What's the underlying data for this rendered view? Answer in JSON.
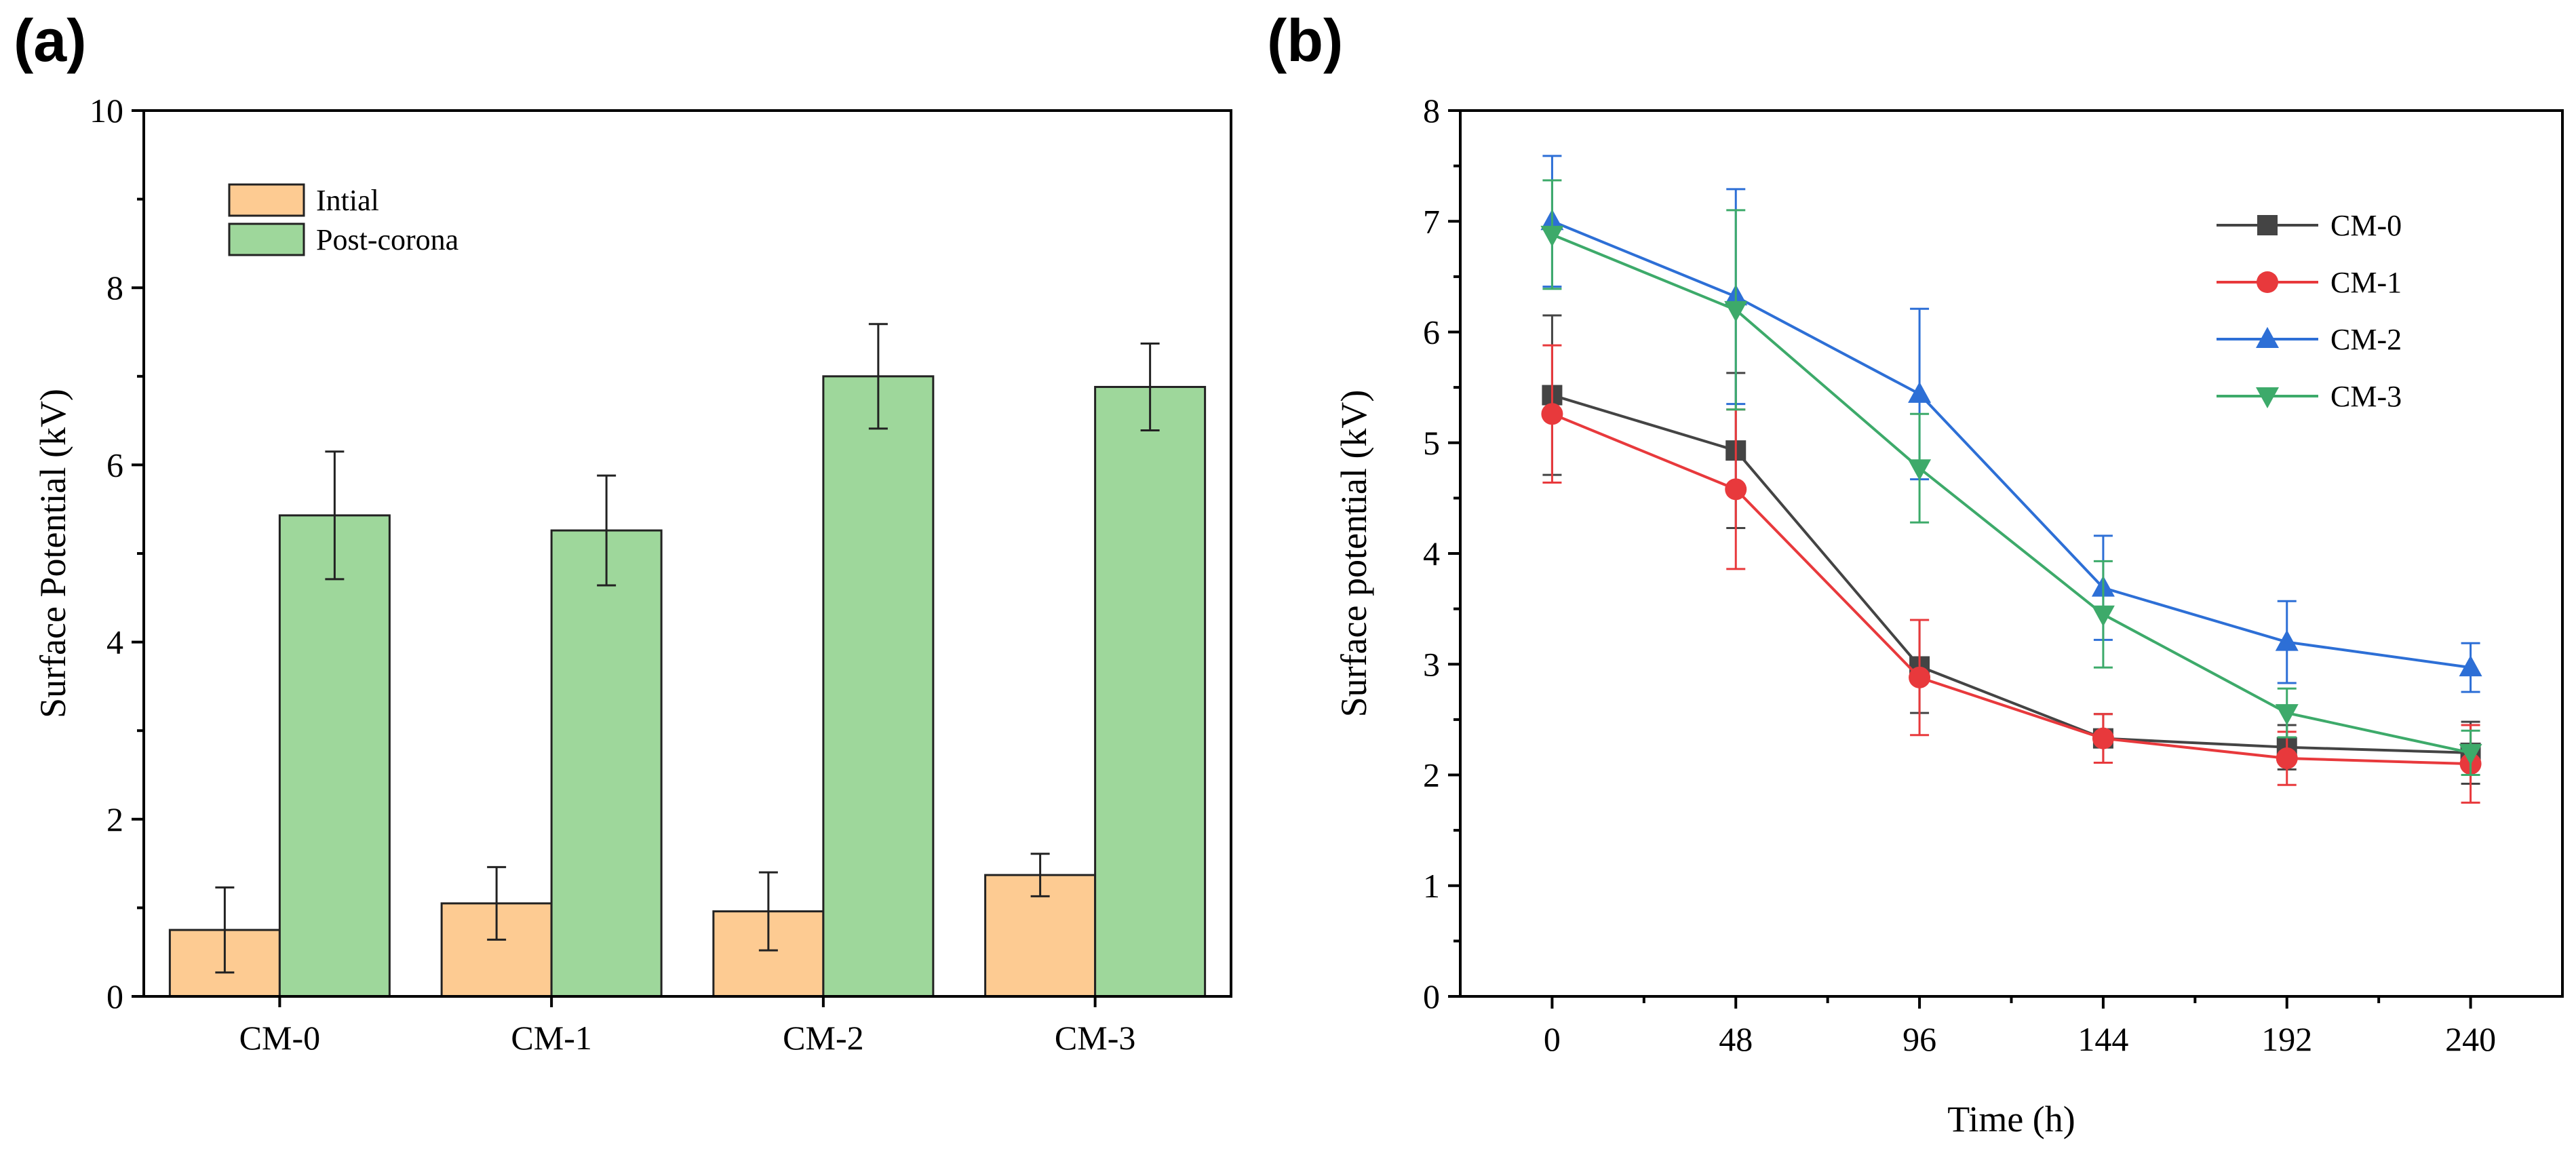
{
  "panels": {
    "a": {
      "label": "(a)"
    },
    "b": {
      "label": "(b)"
    }
  },
  "colors": {
    "initial": "#FDCB92",
    "post": "#9ED79B",
    "CM-0": "#444444",
    "CM-1": "#E8393C",
    "CM-2": "#2D6FD6",
    "CM-3": "#3DAA6A"
  },
  "chart_data": [
    {
      "type": "bar",
      "categories": [
        "CM-0",
        "CM-1",
        "CM-2",
        "CM-3"
      ],
      "series": [
        {
          "name": "Intial",
          "values": [
            0.75,
            1.05,
            0.96,
            1.37
          ],
          "errors": [
            0.48,
            0.41,
            0.44,
            0.24
          ]
        },
        {
          "name": "Post-corona",
          "values": [
            5.43,
            5.26,
            7.0,
            6.88
          ],
          "errors": [
            0.72,
            0.62,
            0.59,
            0.49
          ]
        }
      ],
      "title": "",
      "xlabel": "",
      "ylabel": "Surface Potential (kV)",
      "ylim": [
        0,
        10
      ],
      "yticks": [
        0,
        2,
        4,
        6,
        8,
        10
      ],
      "legend_position": "top-left"
    },
    {
      "type": "line",
      "x": [
        0,
        48,
        96,
        144,
        192,
        240
      ],
      "xticks": [
        0,
        48,
        96,
        144,
        192,
        240
      ],
      "series": [
        {
          "name": "CM-0",
          "marker": "square",
          "values": [
            5.43,
            4.93,
            2.98,
            2.33,
            2.25,
            2.2
          ],
          "errors": [
            0.72,
            0.7,
            0.42,
            0.22,
            0.2,
            0.28
          ]
        },
        {
          "name": "CM-1",
          "marker": "circle",
          "values": [
            5.26,
            4.58,
            2.88,
            2.33,
            2.15,
            2.1
          ],
          "errors": [
            0.62,
            0.72,
            0.52,
            0.22,
            0.24,
            0.35
          ]
        },
        {
          "name": "CM-2",
          "marker": "triangle-up",
          "values": [
            7.0,
            6.32,
            5.44,
            3.69,
            3.2,
            2.97
          ],
          "errors": [
            0.59,
            0.97,
            0.77,
            0.47,
            0.37,
            0.22
          ]
        },
        {
          "name": "CM-3",
          "marker": "triangle-down",
          "values": [
            6.88,
            6.2,
            4.77,
            3.45,
            2.56,
            2.2
          ],
          "errors": [
            0.49,
            0.9,
            0.49,
            0.48,
            0.22,
            0.2
          ]
        }
      ],
      "title": "",
      "xlabel": "Time (h)",
      "ylabel": "Surface potential (kV)",
      "xlim": [
        -24,
        264
      ],
      "ylim": [
        0,
        8
      ],
      "yticks": [
        0,
        1,
        2,
        3,
        4,
        5,
        6,
        7,
        8
      ],
      "legend_position": "top-right"
    }
  ]
}
